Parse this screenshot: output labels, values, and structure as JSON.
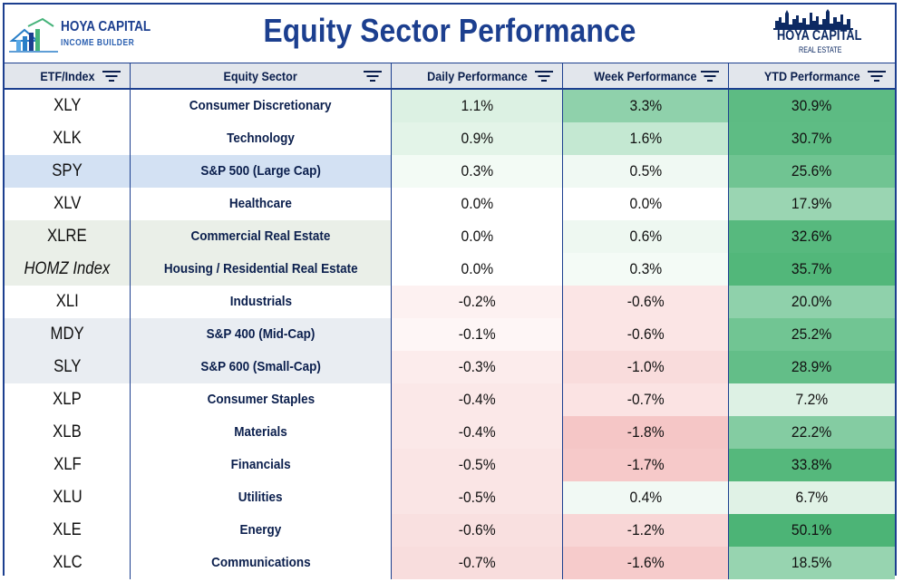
{
  "title": "Equity Sector Performance",
  "logo_left": {
    "line1": "HOYA CAPITAL",
    "line2": "INCOME BUILDER"
  },
  "logo_right": {
    "line1": "HOYA CAPITAL",
    "line2": "REAL ESTATE"
  },
  "columns": [
    {
      "label": "ETF/Index"
    },
    {
      "label": "Equity Sector"
    },
    {
      "label": "Daily Performance"
    },
    {
      "label": "Week Performance"
    },
    {
      "label": "YTD Performance"
    }
  ],
  "colors": {
    "accent": "#1c3f8f"
  },
  "rows": [
    {
      "etf": "XLY",
      "sector": "Consumer Discretionary",
      "daily": "1.1%",
      "week": "3.3%",
      "ytd": "30.9%",
      "etf_bg": "#ffffff",
      "daily_bg": "#dcf1e3",
      "week_bg": "#8fd1ab",
      "ytd_bg": "#5dbb83"
    },
    {
      "etf": "XLK",
      "sector": "Technology",
      "daily": "0.9%",
      "week": "1.6%",
      "ytd": "30.7%",
      "etf_bg": "#ffffff",
      "daily_bg": "#e3f4e8",
      "week_bg": "#c4e8d2",
      "ytd_bg": "#5ebc84"
    },
    {
      "etf": "SPY",
      "sector": "S&P 500 (Large Cap)",
      "daily": "0.3%",
      "week": "0.5%",
      "ytd": "25.6%",
      "etf_bg": "#d3e1f3",
      "daily_bg": "#f3fbf5",
      "week_bg": "#f0f9f3",
      "ytd_bg": "#70c492"
    },
    {
      "etf": "XLV",
      "sector": "Healthcare",
      "daily": "0.0%",
      "week": "0.0%",
      "ytd": "17.9%",
      "etf_bg": "#ffffff",
      "daily_bg": "#ffffff",
      "week_bg": "#ffffff",
      "ytd_bg": "#9ad5b2"
    },
    {
      "etf": "XLRE",
      "sector": "Commercial Real Estate",
      "daily": "0.0%",
      "week": "0.6%",
      "ytd": "32.6%",
      "etf_bg": "#eaefe8",
      "daily_bg": "#ffffff",
      "week_bg": "#eef8f1",
      "ytd_bg": "#57b97e"
    },
    {
      "etf": "HOMZ Index",
      "sector": "Housing / Residential Real Estate",
      "daily": "0.0%",
      "week": "0.3%",
      "ytd": "35.7%",
      "etf_bg": "#eaefe8",
      "daily_bg": "#ffffff",
      "week_bg": "#f4fbf6",
      "ytd_bg": "#52b77a"
    },
    {
      "etf": "XLI",
      "sector": "Industrials",
      "daily": "-0.2%",
      "week": "-0.6%",
      "ytd": "20.0%",
      "etf_bg": "#ffffff",
      "daily_bg": "#fdf1f1",
      "week_bg": "#fbe5e5",
      "ytd_bg": "#8fd1ab"
    },
    {
      "etf": "MDY",
      "sector": "S&P 400 (Mid-Cap)",
      "daily": "-0.1%",
      "week": "-0.6%",
      "ytd": "25.2%",
      "etf_bg": "#e9edf2",
      "daily_bg": "#fef6f6",
      "week_bg": "#fbe5e5",
      "ytd_bg": "#71c593"
    },
    {
      "etf": "SLY",
      "sector": "S&P 600 (Small-Cap)",
      "daily": "-0.3%",
      "week": "-1.0%",
      "ytd": "28.9%",
      "etf_bg": "#e9edf2",
      "daily_bg": "#fcecec",
      "week_bg": "#f9dcdc",
      "ytd_bg": "#63be88"
    },
    {
      "etf": "XLP",
      "sector": "Consumer Staples",
      "daily": "-0.4%",
      "week": "-0.7%",
      "ytd": "7.2%",
      "etf_bg": "#ffffff",
      "daily_bg": "#fbe8e8",
      "week_bg": "#fbe3e3",
      "ytd_bg": "#ddf1e4"
    },
    {
      "etf": "XLB",
      "sector": "Materials",
      "daily": "-0.4%",
      "week": "-1.8%",
      "ytd": "22.2%",
      "etf_bg": "#ffffff",
      "daily_bg": "#fbe8e8",
      "week_bg": "#f5c6c6",
      "ytd_bg": "#84cca2"
    },
    {
      "etf": "XLF",
      "sector": "Financials",
      "daily": "-0.5%",
      "week": "-1.7%",
      "ytd": "33.8%",
      "etf_bg": "#ffffff",
      "daily_bg": "#fae5e5",
      "week_bg": "#f6c9c9",
      "ytd_bg": "#55b87c"
    },
    {
      "etf": "XLU",
      "sector": "Utilities",
      "daily": "-0.5%",
      "week": "0.4%",
      "ytd": "6.7%",
      "etf_bg": "#ffffff",
      "daily_bg": "#fae5e5",
      "week_bg": "#f1f9f4",
      "ytd_bg": "#e0f2e6"
    },
    {
      "etf": "XLE",
      "sector": "Energy",
      "daily": "-0.6%",
      "week": "-1.2%",
      "ytd": "50.1%",
      "etf_bg": "#ffffff",
      "daily_bg": "#f9e0e0",
      "week_bg": "#f8d6d6",
      "ytd_bg": "#4cb476"
    },
    {
      "etf": "XLC",
      "sector": "Communications",
      "daily": "-0.7%",
      "week": "-1.6%",
      "ytd": "18.5%",
      "etf_bg": "#ffffff",
      "daily_bg": "#f8dddd",
      "week_bg": "#f6cbcb",
      "ytd_bg": "#97d4b0"
    }
  ]
}
